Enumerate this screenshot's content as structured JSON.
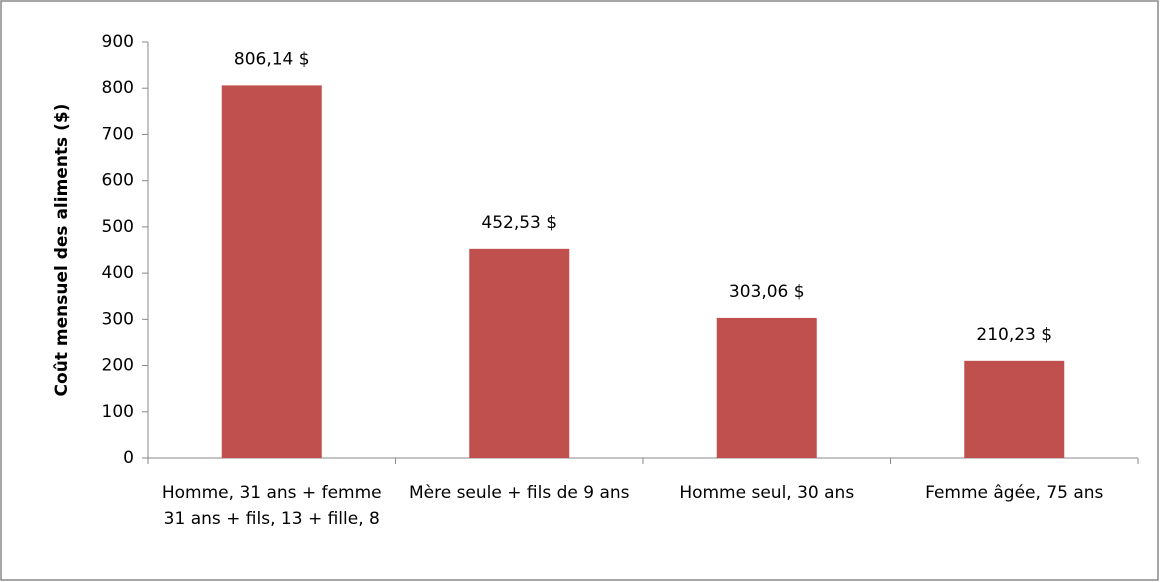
{
  "chart_data": {
    "type": "bar",
    "y_label": "Coût mensuel des aliments ($)",
    "categories": [
      "Homme, 31 ans + femme 31 ans + fils, 13 + fille, 8",
      "Mère seule + fils de 9 ans",
      "Homme seul, 30 ans",
      "Femme âgée, 75 ans"
    ],
    "values": [
      806.14,
      452.53,
      303.06,
      210.23
    ],
    "value_labels": [
      "806,14 $",
      "452,53 $",
      "303,06 $",
      "210,23 $"
    ],
    "color": "#c0504d",
    "ylim": [
      0,
      900
    ],
    "yticks": [
      0,
      100,
      200,
      300,
      400,
      500,
      600,
      700,
      800,
      900
    ],
    "grid": false
  }
}
